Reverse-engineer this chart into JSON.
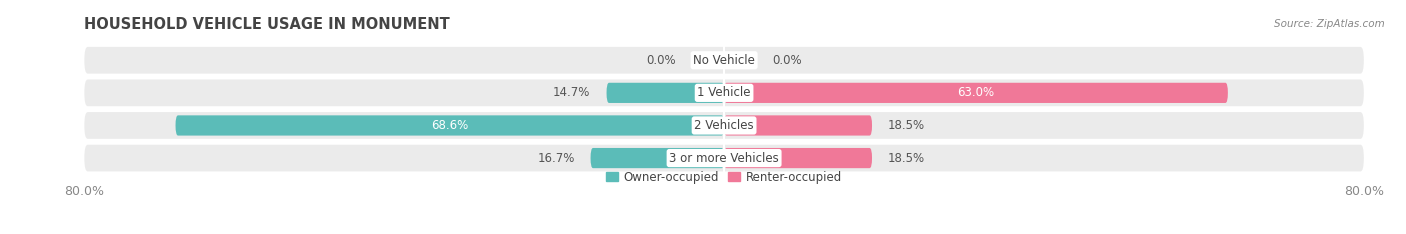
{
  "title": "HOUSEHOLD VEHICLE USAGE IN MONUMENT",
  "source": "Source: ZipAtlas.com",
  "categories": [
    "No Vehicle",
    "1 Vehicle",
    "2 Vehicles",
    "3 or more Vehicles"
  ],
  "owner_values": [
    0.0,
    14.7,
    68.6,
    16.7
  ],
  "renter_values": [
    0.0,
    63.0,
    18.5,
    18.5
  ],
  "owner_color": "#5BBCB8",
  "renter_color": "#F07898",
  "owner_color_light": "#A8D8D8",
  "renter_color_light": "#F8B8C8",
  "bar_bg_color": "#EBEBEB",
  "bar_height": 0.62,
  "bg_bar_height": 0.82,
  "xlim": [
    -80,
    80
  ],
  "xticklabels": [
    "80.0%",
    "80.0%"
  ],
  "legend_owner": "Owner-occupied",
  "legend_renter": "Renter-occupied",
  "title_fontsize": 10.5,
  "label_fontsize": 8.5,
  "axis_fontsize": 9,
  "source_fontsize": 7.5
}
